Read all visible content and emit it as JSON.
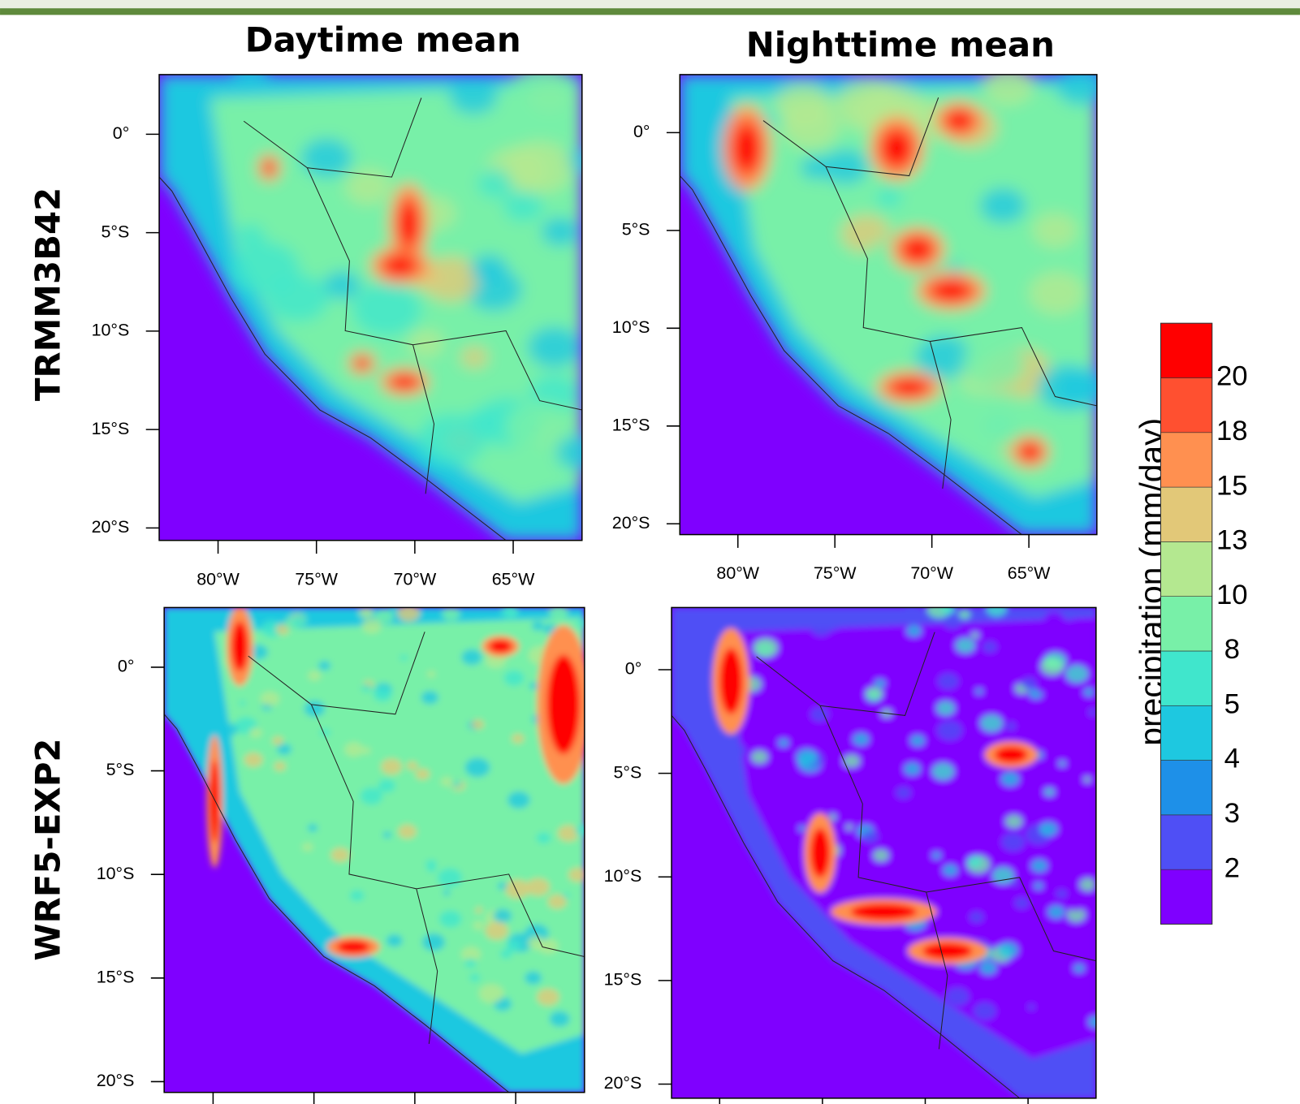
{
  "columns": [
    "Daytime mean",
    "Nighttime mean"
  ],
  "rows": [
    "TRMM3B42",
    "WRF5-EXP2"
  ],
  "lat_labels": [
    "0°",
    "5°S",
    "10°S",
    "15°S",
    "20°S"
  ],
  "lon_labels": [
    "80°W",
    "75°W",
    "70°W",
    "65°W"
  ],
  "colorbar": {
    "label": "precipitation (mm/day)",
    "levels": [
      2,
      3,
      4,
      5,
      8,
      10,
      13,
      15,
      18,
      20
    ],
    "colors": [
      "#7f00ff",
      "#4f4ff5",
      "#1e90e8",
      "#1ec8e0",
      "#40e6cc",
      "#78f0a8",
      "#b4e890",
      "#e2c878",
      "#ff9050",
      "#ff5030",
      "#ff0000"
    ]
  }
}
